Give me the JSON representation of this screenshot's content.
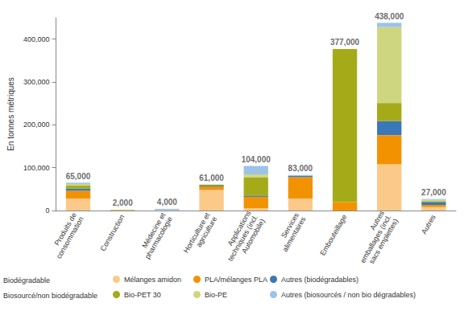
{
  "chart_data": {
    "type": "bar",
    "stacked": true,
    "y_label": "En tonnes métriques",
    "categories": [
      "Produits de\nconsommation",
      "Construction",
      "Médecine et\npharmacologie",
      "Horticulture et\nagriculture",
      "Applications\ntechniques (incl.\nAutomobile)",
      "Services\nalimentaires",
      "Embouteillage",
      "Autres\nemballages (incl.\nsacs emplettes)",
      "Autres"
    ],
    "series": [
      {
        "name": "Mélanges amidon",
        "group": "Biodégradable",
        "color": "#fbc98a",
        "values": [
          28000,
          1000,
          1000,
          48000,
          5000,
          28000,
          0,
          108000,
          8000
        ]
      },
      {
        "name": "PLA/mélanges PLA",
        "group": "Biodégradable",
        "color": "#f39200",
        "values": [
          18000,
          0,
          0,
          8000,
          27000,
          50000,
          20000,
          68000,
          5000
        ]
      },
      {
        "name": "Autres (biodégradables)",
        "group": "Biodégradable",
        "color": "#3b78b7",
        "values": [
          5000,
          0,
          0,
          2000,
          3000,
          3000,
          0,
          33000,
          7000
        ]
      },
      {
        "name": "Bio-PET 30",
        "group": "Biosourcé/non biodégradable",
        "color": "#a5ab18",
        "values": [
          7000,
          1000,
          0,
          2000,
          42000,
          0,
          357000,
          42000,
          2000
        ]
      },
      {
        "name": "Bio-PE",
        "group": "Biosourcé/non biodégradable",
        "color": "#cfd680",
        "values": [
          4000,
          0,
          0,
          1000,
          7000,
          0,
          0,
          177000,
          3000
        ]
      },
      {
        "name": "Autres (biosourcés / non bio dégradables)",
        "group": "Biosourcé/non biodégradable",
        "color": "#9dc3e6",
        "values": [
          3000,
          0,
          3000,
          0,
          20000,
          2000,
          0,
          10000,
          2000
        ]
      }
    ],
    "totals": {
      "values": [
        65000,
        2000,
        4000,
        61000,
        104000,
        83000,
        377000,
        438000,
        27000
      ],
      "value_labels": [
        "65,000",
        "2,000",
        "4,000",
        "61,000",
        "104,000",
        "83,000",
        "377,000",
        "438,000",
        "27,000"
      ]
    },
    "ylim": [
      0,
      450000
    ],
    "yticks": [
      0,
      {
        "value": 100000,
        "label": "100,000"
      },
      {
        "value": 200000,
        "label": "200,000"
      },
      {
        "value": 300000,
        "label": "300,000"
      },
      {
        "value": 400000,
        "label": "400,000"
      }
    ],
    "grid": false,
    "legend": "bottom"
  }
}
